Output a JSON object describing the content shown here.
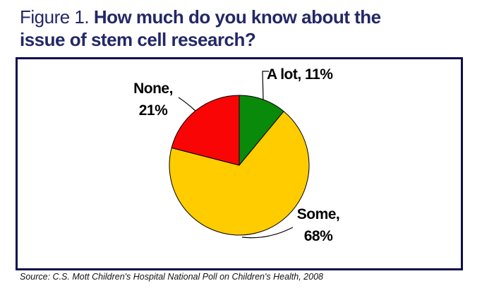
{
  "title": {
    "prefix": "Figure 1. ",
    "bold_line1": "How much do you know about the",
    "bold_line2": "issue of stem cell research?"
  },
  "labels": {
    "a_lot": "A lot, 11%",
    "none_line1": "None,",
    "none_line2": "21%",
    "some_line1": "Some,",
    "some_line2": "68%"
  },
  "source": "Source: C.S. Mott Children's Hospital National Poll on Children's Health, 2008",
  "colors": {
    "title_navy": "#232866",
    "box_border": "#0D0D4D",
    "a_lot_green": "#0A8A0A",
    "some_yellow": "#FFCC00",
    "none_red": "#FA0505",
    "slice_outline": "#000000",
    "label_text": "#000000"
  },
  "chart_data": {
    "type": "pie",
    "title": "Figure 1. How much do you know about the issue of stem cell research?",
    "categories": [
      "A lot",
      "Some",
      "None"
    ],
    "values": [
      11,
      68,
      21
    ],
    "slices": [
      {
        "label": "A lot",
        "value": 11,
        "color": "#0A8A0A"
      },
      {
        "label": "Some",
        "value": 68,
        "color": "#FFCC00"
      },
      {
        "label": "None",
        "value": 21,
        "color": "#FA0505"
      }
    ],
    "start_angle": "12 o'clock, clockwise",
    "legend_position": "none (callout labels with leader lines)",
    "source": "Source: C.S. Mott Children's Hospital National Poll on Children's Health, 2008"
  }
}
